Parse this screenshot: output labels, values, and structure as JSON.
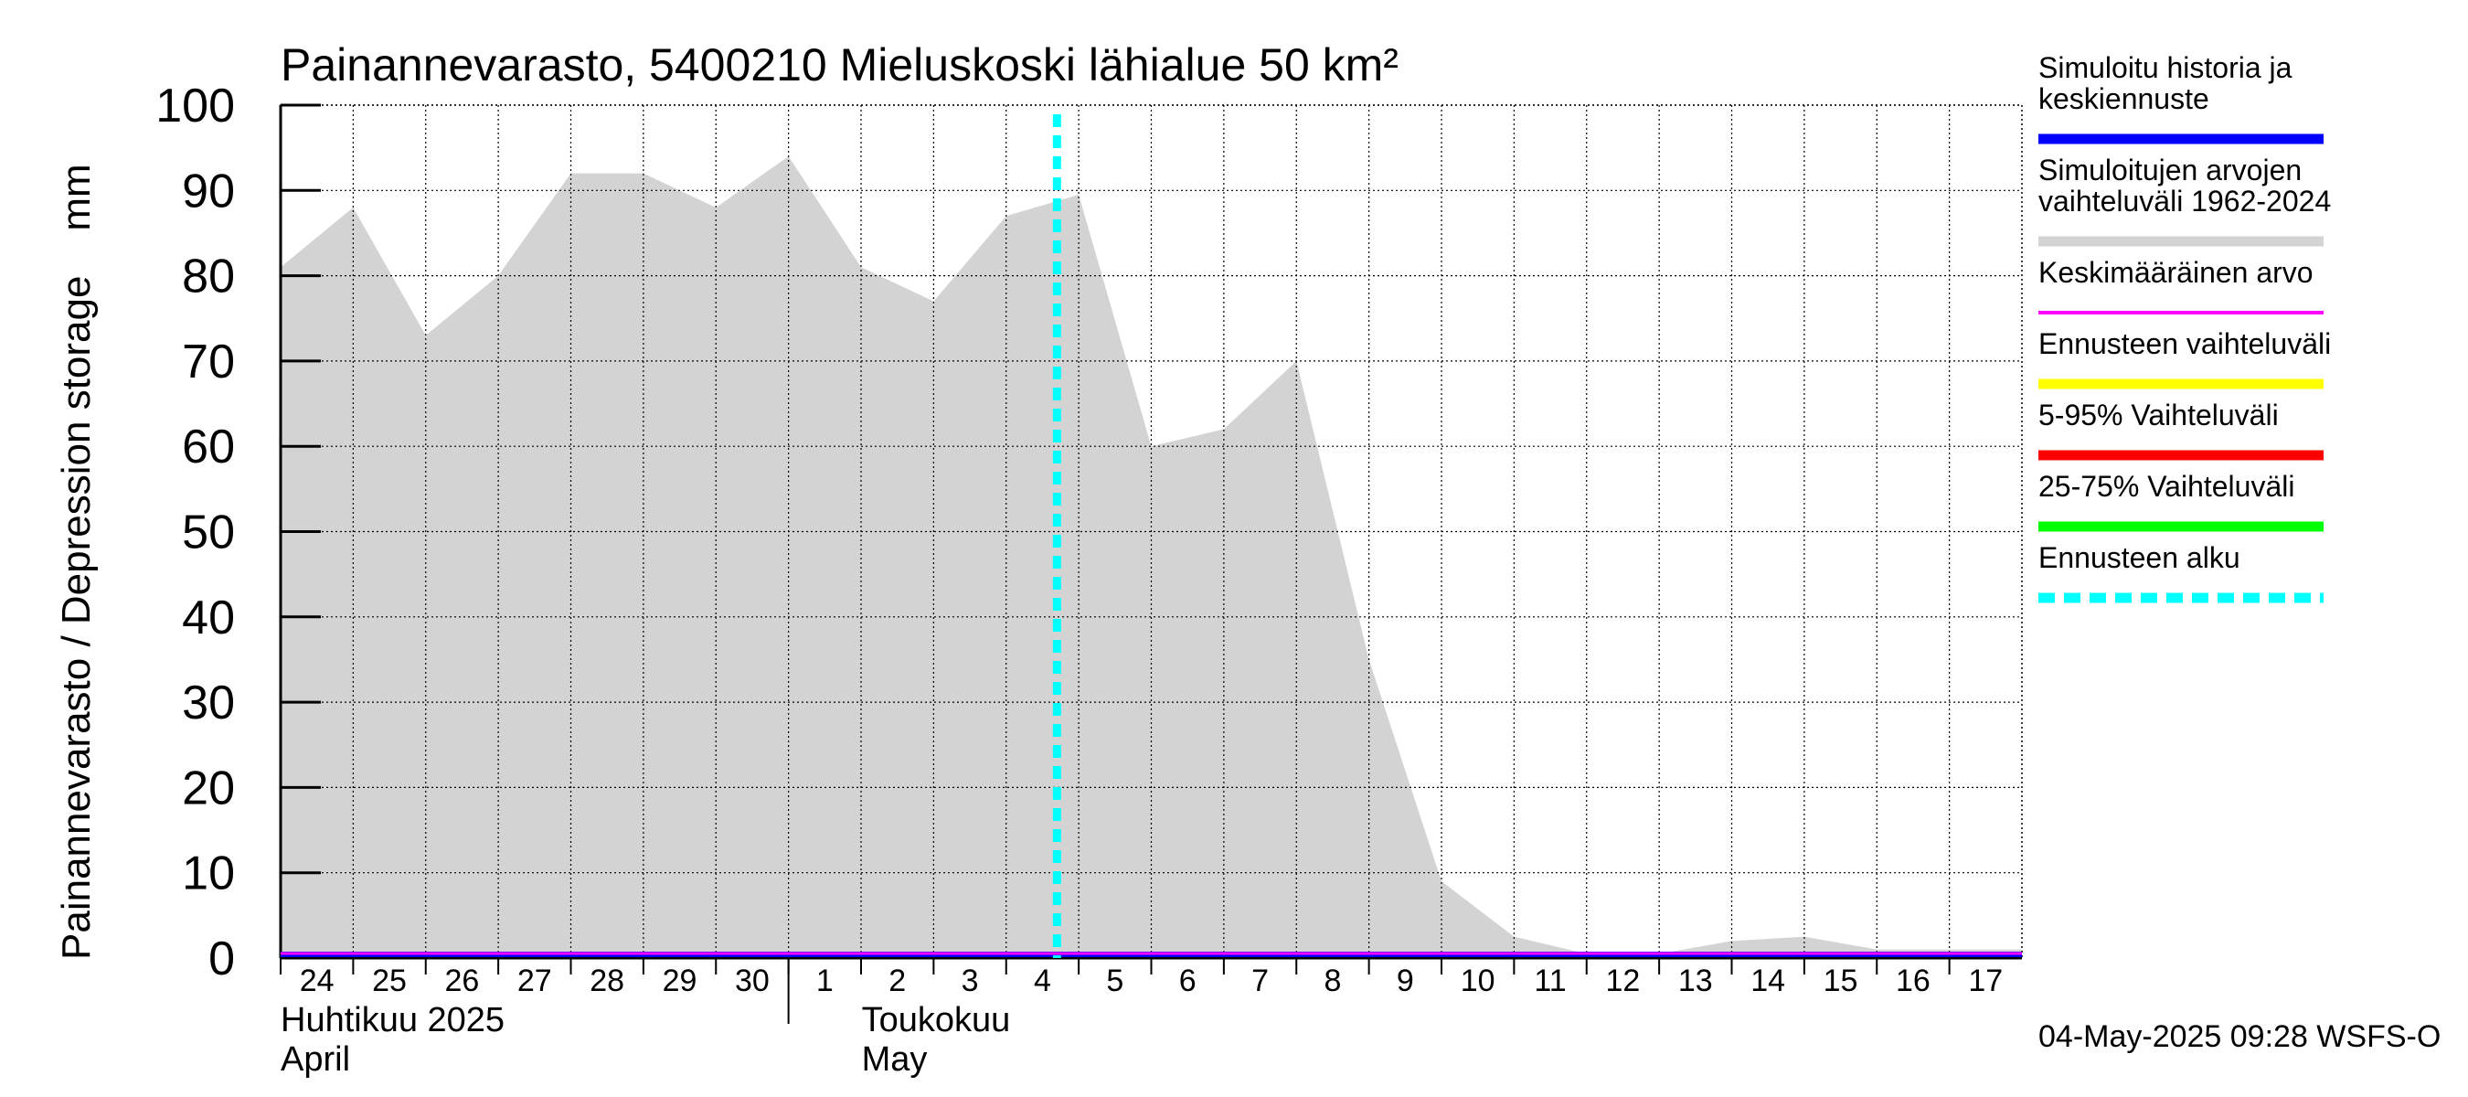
{
  "chart_data": {
    "type": "area",
    "title": "Painannevarasto, 5400210 Mieluskoski lähialue 50 km²",
    "ylabel": "Painannevarasto / Depression storage    mm",
    "ylim": [
      0,
      100
    ],
    "yticks": [
      0,
      10,
      20,
      30,
      40,
      50,
      60,
      70,
      80,
      90,
      100
    ],
    "x_tick_labels": [
      "24",
      "25",
      "26",
      "27",
      "28",
      "29",
      "30",
      "1",
      "2",
      "3",
      "4",
      "5",
      "6",
      "7",
      "8",
      "9",
      "10",
      "11",
      "12",
      "13",
      "14",
      "15",
      "16",
      "17"
    ],
    "month_labels": [
      {
        "fi": "Huhtikuu  2025",
        "en": "April"
      },
      {
        "fi": "Toukokuu",
        "en": "May"
      }
    ],
    "forecast_start_day": 10.7,
    "series": [
      {
        "name": "Simuloitujen arvojen vaihteluväli 1962-2024",
        "color": "#d3d3d3",
        "x": [
          0,
          1,
          2,
          3,
          4,
          5,
          6,
          7,
          8,
          9,
          10,
          11,
          12,
          13,
          14,
          15,
          16,
          17,
          18,
          19,
          20,
          21,
          22,
          23,
          24
        ],
        "upper": [
          81,
          88,
          73,
          80,
          92,
          92,
          88,
          94,
          81,
          77,
          87,
          89.5,
          60,
          62,
          70,
          35,
          9,
          2.5,
          0.5,
          0.5,
          2,
          2.5,
          1,
          1,
          1
        ],
        "lower": [
          0,
          0,
          0,
          0,
          0,
          0,
          0,
          0,
          0,
          0,
          0,
          0,
          0,
          0,
          0,
          0,
          0,
          0,
          0,
          0,
          0,
          0,
          0,
          0,
          0
        ]
      },
      {
        "name": "Simuloitu historia ja keskiennuste",
        "color": "#0000ff",
        "value": 0
      },
      {
        "name": "Keskimääräinen arvo",
        "color": "#ff00ff",
        "value": 0
      }
    ]
  },
  "legend": [
    {
      "lines": [
        "Simuloitu historia ja",
        "keskiennuste"
      ],
      "color": "#0000ff",
      "style": "solid"
    },
    {
      "lines": [
        "Simuloitujen arvojen",
        "vaihteluväli 1962-2024"
      ],
      "color": "#d3d3d3",
      "style": "solid"
    },
    {
      "lines": [
        "Keskimääräinen arvo"
      ],
      "color": "#ff00ff",
      "style": "thin"
    },
    {
      "lines": [
        "Ennusteen vaihteluväli"
      ],
      "color": "#ffff00",
      "style": "solid"
    },
    {
      "lines": [
        "5-95% Vaihteluväli"
      ],
      "color": "#ff0000",
      "style": "solid"
    },
    {
      "lines": [
        "25-75% Vaihteluväli"
      ],
      "color": "#00ff00",
      "style": "solid"
    },
    {
      "lines": [
        "Ennusteen alku"
      ],
      "color": "#00ffff",
      "style": "dashed"
    }
  ],
  "footer": "04-May-2025 09:28 WSFS-O"
}
